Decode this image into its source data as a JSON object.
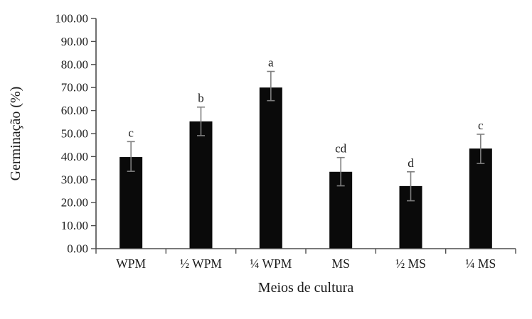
{
  "chart_data": {
    "type": "bar",
    "title": "",
    "xlabel": "Meios de cultura",
    "ylabel": "Germinação (%)",
    "categories": [
      "WPM",
      "½ WPM",
      "¼ WPM",
      "MS",
      "½ MS",
      "¼ MS"
    ],
    "values": [
      39.8,
      55.3,
      70.0,
      33.4,
      27.2,
      43.5
    ],
    "error_upper": [
      46.5,
      61.5,
      77.0,
      39.6,
      33.4,
      49.7
    ],
    "error_lower": [
      33.6,
      49.1,
      64.3,
      27.3,
      20.8,
      37.0
    ],
    "significance_letters": [
      "c",
      "b",
      "a",
      "cd",
      "d",
      "c"
    ],
    "ylim": [
      0,
      100
    ],
    "ytick_step": 10,
    "ytick_decimals": 2,
    "grid": false,
    "legend": null,
    "bar_color": "#0a0a0a",
    "error_bar_color": "#7f7f7f",
    "axis_color": "#4d4d4d",
    "text_color": "#1a1a1a"
  }
}
